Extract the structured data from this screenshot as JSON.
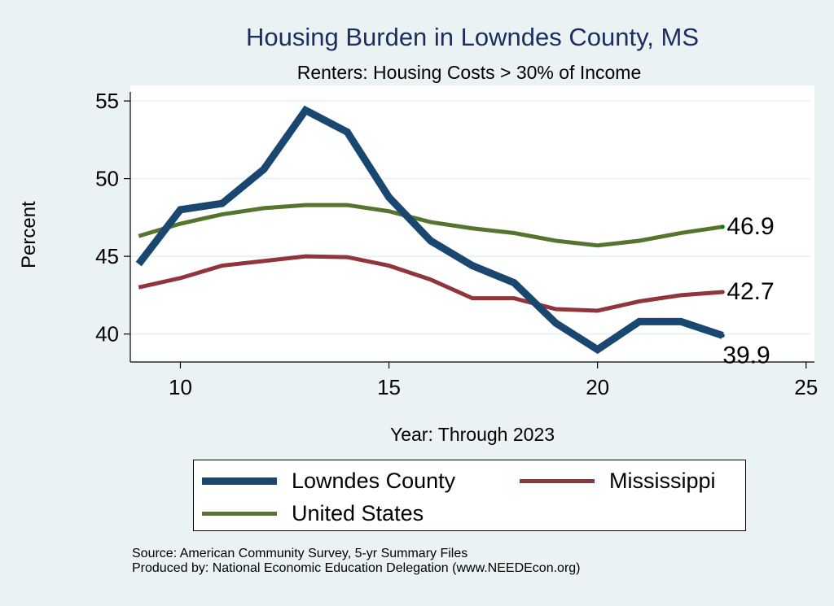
{
  "title": "Housing Burden in Lowndes County, MS",
  "subtitle": "Renters: Housing Costs > 30% of Income",
  "source": [
    "Source: American Community Survey, 5-yr Summary Files",
    "Produced by: National Economic Education Delegation (www.NEEDEcon.org)"
  ],
  "chart_data": {
    "type": "line",
    "title": "Housing Burden in Lowndes County, MS",
    "subtitle": "Renters: Housing Costs > 30% of Income",
    "xlabel": "Year: Through 2023",
    "ylabel": "Percent",
    "xlim": [
      8.8,
      25.2
    ],
    "ylim": [
      38.2,
      56
    ],
    "xticks": [
      10,
      15,
      20,
      25
    ],
    "yticks": [
      40,
      45,
      50,
      55
    ],
    "grid": "horizontal",
    "legend_position": "bottom",
    "x": [
      9,
      10,
      11,
      12,
      13,
      14,
      15,
      16,
      17,
      18,
      19,
      20,
      21,
      22,
      23
    ],
    "series": [
      {
        "name": "Lowndes County",
        "color": "#1a476f",
        "width": 9,
        "end_label": "39.9",
        "values": [
          44.5,
          48.0,
          48.4,
          50.6,
          54.4,
          53.0,
          48.8,
          46.0,
          44.4,
          43.3,
          40.7,
          39.0,
          40.8,
          40.8,
          39.9
        ]
      },
      {
        "name": "Mississippi",
        "color": "#90353b",
        "width": 5,
        "end_label": "42.7",
        "values": [
          43.0,
          43.6,
          44.4,
          44.7,
          45.0,
          44.95,
          44.4,
          43.5,
          42.3,
          42.3,
          41.6,
          41.5,
          42.1,
          42.5,
          42.7
        ]
      },
      {
        "name": "United States",
        "color": "#55752f",
        "width": 5,
        "end_label": "46.9",
        "values": [
          46.3,
          47.1,
          47.7,
          48.1,
          48.3,
          48.3,
          47.9,
          47.2,
          46.8,
          46.5,
          46.0,
          45.7,
          46.0,
          46.5,
          46.9
        ]
      }
    ]
  }
}
